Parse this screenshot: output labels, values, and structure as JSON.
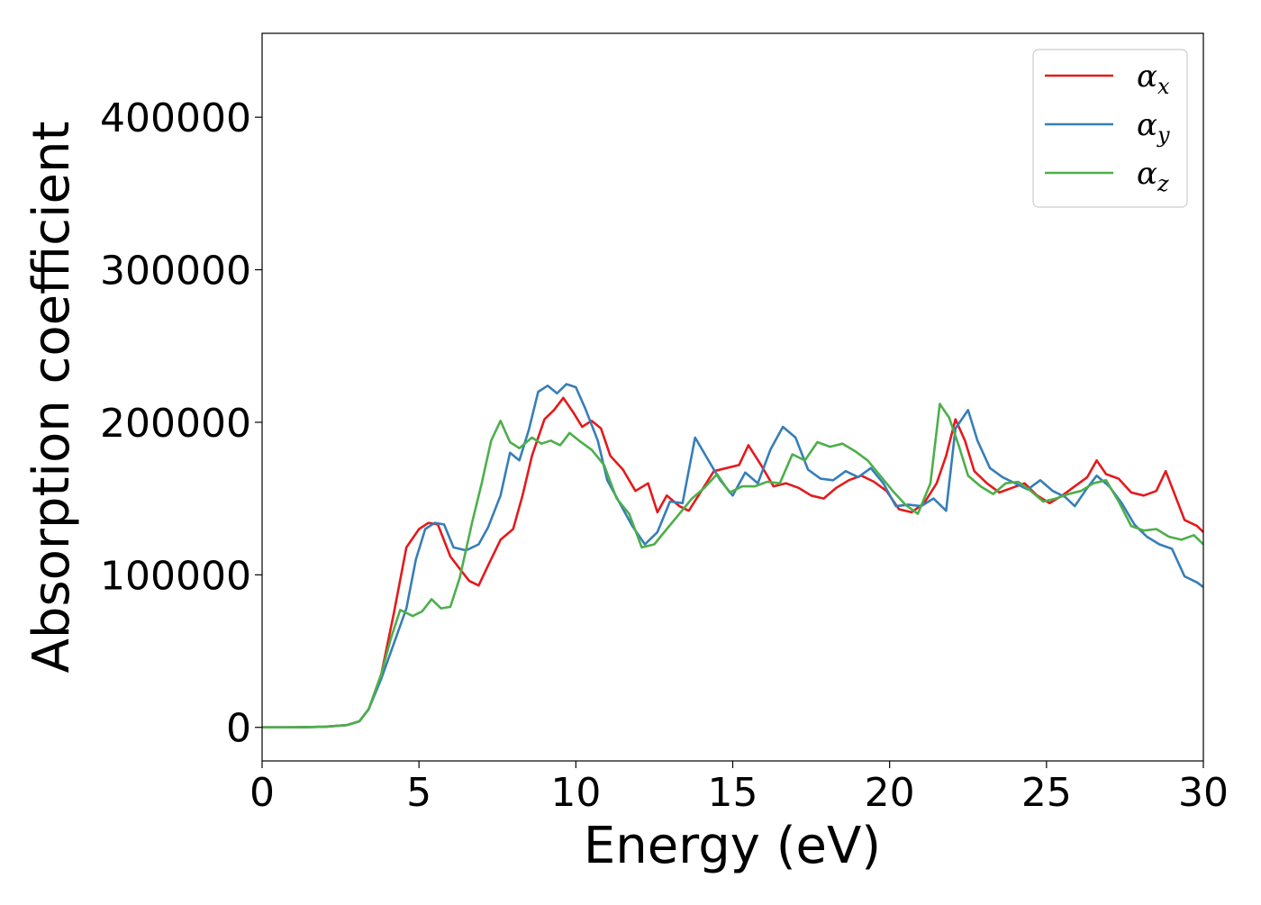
{
  "chart_data": {
    "type": "line",
    "xlabel": "Energy (eV)",
    "ylabel": "Absorption coefficient",
    "xlim": [
      0,
      30
    ],
    "ylim": [
      -22000,
      455000
    ],
    "xticks": [
      0,
      5,
      10,
      15,
      20,
      25,
      30
    ],
    "xtick_labels": [
      "0",
      "5",
      "10",
      "15",
      "20",
      "25",
      "30"
    ],
    "yticks": [
      0,
      100000,
      200000,
      300000,
      400000
    ],
    "ytick_labels": [
      "0",
      "100000",
      "200000",
      "300000",
      "400000"
    ],
    "grid": false,
    "legend_position": "top-right",
    "series": [
      {
        "name": "α_x",
        "legend_symbol": "α",
        "legend_subscript": "x",
        "color": "#e41a1c",
        "points": [
          [
            0,
            0
          ],
          [
            1,
            0
          ],
          [
            2,
            400
          ],
          [
            2.7,
            1500
          ],
          [
            3.1,
            4000
          ],
          [
            3.4,
            12000
          ],
          [
            3.8,
            35000
          ],
          [
            4.2,
            75000
          ],
          [
            4.6,
            118000
          ],
          [
            5.0,
            130000
          ],
          [
            5.3,
            134000
          ],
          [
            5.6,
            133000
          ],
          [
            6.0,
            112000
          ],
          [
            6.3,
            104000
          ],
          [
            6.6,
            96000
          ],
          [
            6.9,
            93000
          ],
          [
            7.2,
            106000
          ],
          [
            7.6,
            123000
          ],
          [
            8.0,
            130000
          ],
          [
            8.3,
            152000
          ],
          [
            8.6,
            178000
          ],
          [
            9.0,
            202000
          ],
          [
            9.3,
            208000
          ],
          [
            9.6,
            216000
          ],
          [
            9.9,
            207000
          ],
          [
            10.2,
            197000
          ],
          [
            10.5,
            201000
          ],
          [
            10.8,
            196000
          ],
          [
            11.1,
            178000
          ],
          [
            11.5,
            169000
          ],
          [
            11.9,
            155000
          ],
          [
            12.3,
            160000
          ],
          [
            12.6,
            141000
          ],
          [
            12.9,
            152000
          ],
          [
            13.3,
            145000
          ],
          [
            13.6,
            142000
          ],
          [
            14.0,
            155000
          ],
          [
            14.4,
            168000
          ],
          [
            14.8,
            170000
          ],
          [
            15.2,
            172000
          ],
          [
            15.5,
            185000
          ],
          [
            15.9,
            172000
          ],
          [
            16.3,
            158000
          ],
          [
            16.7,
            160000
          ],
          [
            17.1,
            157000
          ],
          [
            17.5,
            152000
          ],
          [
            17.9,
            150000
          ],
          [
            18.3,
            157000
          ],
          [
            18.7,
            162000
          ],
          [
            19.1,
            165000
          ],
          [
            19.5,
            161000
          ],
          [
            19.9,
            155000
          ],
          [
            20.3,
            143000
          ],
          [
            20.7,
            141000
          ],
          [
            21.1,
            147000
          ],
          [
            21.5,
            160000
          ],
          [
            21.8,
            178000
          ],
          [
            22.1,
            202000
          ],
          [
            22.4,
            188000
          ],
          [
            22.7,
            168000
          ],
          [
            23.1,
            160000
          ],
          [
            23.5,
            154000
          ],
          [
            23.9,
            157000
          ],
          [
            24.3,
            160000
          ],
          [
            24.7,
            152000
          ],
          [
            25.1,
            147000
          ],
          [
            25.5,
            152000
          ],
          [
            25.9,
            158000
          ],
          [
            26.3,
            164000
          ],
          [
            26.6,
            175000
          ],
          [
            26.9,
            166000
          ],
          [
            27.3,
            163000
          ],
          [
            27.7,
            154000
          ],
          [
            28.1,
            152000
          ],
          [
            28.5,
            155000
          ],
          [
            28.8,
            168000
          ],
          [
            29.1,
            152000
          ],
          [
            29.4,
            136000
          ],
          [
            29.8,
            132000
          ],
          [
            30,
            128000
          ]
        ]
      },
      {
        "name": "α_y",
        "legend_symbol": "α",
        "legend_subscript": "y",
        "color": "#377eb8",
        "points": [
          [
            0,
            0
          ],
          [
            1,
            0
          ],
          [
            2,
            400
          ],
          [
            2.7,
            1500
          ],
          [
            3.1,
            4000
          ],
          [
            3.4,
            12000
          ],
          [
            3.8,
            32000
          ],
          [
            4.2,
            55000
          ],
          [
            4.6,
            78000
          ],
          [
            4.9,
            110000
          ],
          [
            5.2,
            130000
          ],
          [
            5.5,
            134000
          ],
          [
            5.8,
            133000
          ],
          [
            6.1,
            118000
          ],
          [
            6.5,
            116000
          ],
          [
            6.9,
            120000
          ],
          [
            7.2,
            131000
          ],
          [
            7.6,
            152000
          ],
          [
            7.9,
            180000
          ],
          [
            8.2,
            175000
          ],
          [
            8.5,
            195000
          ],
          [
            8.8,
            220000
          ],
          [
            9.1,
            224000
          ],
          [
            9.4,
            219000
          ],
          [
            9.7,
            225000
          ],
          [
            10.0,
            223000
          ],
          [
            10.3,
            209000
          ],
          [
            10.7,
            188000
          ],
          [
            11.0,
            162000
          ],
          [
            11.4,
            147000
          ],
          [
            11.8,
            132000
          ],
          [
            12.2,
            120000
          ],
          [
            12.6,
            128000
          ],
          [
            13.0,
            148000
          ],
          [
            13.4,
            147000
          ],
          [
            13.8,
            190000
          ],
          [
            14.2,
            176000
          ],
          [
            14.6,
            162000
          ],
          [
            15.0,
            152000
          ],
          [
            15.4,
            167000
          ],
          [
            15.8,
            160000
          ],
          [
            16.2,
            182000
          ],
          [
            16.6,
            197000
          ],
          [
            17.0,
            190000
          ],
          [
            17.4,
            169000
          ],
          [
            17.8,
            163000
          ],
          [
            18.2,
            162000
          ],
          [
            18.6,
            168000
          ],
          [
            19.0,
            164000
          ],
          [
            19.4,
            170000
          ],
          [
            19.8,
            160000
          ],
          [
            20.2,
            145000
          ],
          [
            20.6,
            146000
          ],
          [
            21.0,
            145000
          ],
          [
            21.4,
            150000
          ],
          [
            21.8,
            142000
          ],
          [
            22.1,
            196000
          ],
          [
            22.5,
            208000
          ],
          [
            22.8,
            188000
          ],
          [
            23.2,
            170000
          ],
          [
            23.6,
            164000
          ],
          [
            24.0,
            160000
          ],
          [
            24.4,
            156000
          ],
          [
            24.8,
            162000
          ],
          [
            25.2,
            155000
          ],
          [
            25.6,
            151000
          ],
          [
            25.9,
            145000
          ],
          [
            26.3,
            157000
          ],
          [
            26.6,
            165000
          ],
          [
            27.0,
            158000
          ],
          [
            27.4,
            147000
          ],
          [
            27.8,
            133000
          ],
          [
            28.2,
            125000
          ],
          [
            28.6,
            120000
          ],
          [
            29.0,
            117000
          ],
          [
            29.4,
            99000
          ],
          [
            29.8,
            95000
          ],
          [
            30,
            92000
          ]
        ]
      },
      {
        "name": "α_z",
        "legend_symbol": "α",
        "legend_subscript": "z",
        "color": "#4daf4a",
        "points": [
          [
            0,
            0
          ],
          [
            1,
            0
          ],
          [
            2,
            400
          ],
          [
            2.7,
            1500
          ],
          [
            3.1,
            4000
          ],
          [
            3.4,
            12000
          ],
          [
            3.8,
            35000
          ],
          [
            4.1,
            58000
          ],
          [
            4.4,
            77000
          ],
          [
            4.8,
            73000
          ],
          [
            5.1,
            76000
          ],
          [
            5.4,
            84000
          ],
          [
            5.7,
            78000
          ],
          [
            6.0,
            79000
          ],
          [
            6.3,
            98000
          ],
          [
            6.7,
            135000
          ],
          [
            7.0,
            160000
          ],
          [
            7.3,
            188000
          ],
          [
            7.6,
            201000
          ],
          [
            7.9,
            187000
          ],
          [
            8.2,
            183000
          ],
          [
            8.6,
            190000
          ],
          [
            8.9,
            186000
          ],
          [
            9.2,
            188000
          ],
          [
            9.5,
            185000
          ],
          [
            9.8,
            193000
          ],
          [
            10.1,
            188000
          ],
          [
            10.5,
            182000
          ],
          [
            10.9,
            172000
          ],
          [
            11.3,
            150000
          ],
          [
            11.7,
            140000
          ],
          [
            12.1,
            118000
          ],
          [
            12.5,
            120000
          ],
          [
            12.9,
            130000
          ],
          [
            13.3,
            140000
          ],
          [
            13.7,
            150000
          ],
          [
            14.1,
            157000
          ],
          [
            14.5,
            166000
          ],
          [
            14.9,
            154000
          ],
          [
            15.3,
            158000
          ],
          [
            15.7,
            158000
          ],
          [
            16.1,
            161000
          ],
          [
            16.5,
            160000
          ],
          [
            16.9,
            179000
          ],
          [
            17.3,
            175000
          ],
          [
            17.7,
            187000
          ],
          [
            18.1,
            184000
          ],
          [
            18.5,
            186000
          ],
          [
            18.9,
            181000
          ],
          [
            19.3,
            175000
          ],
          [
            19.7,
            165000
          ],
          [
            20.1,
            155000
          ],
          [
            20.5,
            146000
          ],
          [
            20.9,
            140000
          ],
          [
            21.3,
            160000
          ],
          [
            21.6,
            212000
          ],
          [
            21.9,
            203000
          ],
          [
            22.2,
            185000
          ],
          [
            22.5,
            165000
          ],
          [
            22.9,
            158000
          ],
          [
            23.3,
            153000
          ],
          [
            23.7,
            160000
          ],
          [
            24.1,
            161000
          ],
          [
            24.5,
            155000
          ],
          [
            24.9,
            148000
          ],
          [
            25.3,
            150000
          ],
          [
            25.7,
            153000
          ],
          [
            26.1,
            155000
          ],
          [
            26.5,
            160000
          ],
          [
            26.9,
            162000
          ],
          [
            27.3,
            148000
          ],
          [
            27.7,
            132000
          ],
          [
            28.1,
            129000
          ],
          [
            28.5,
            130000
          ],
          [
            28.9,
            125000
          ],
          [
            29.3,
            123000
          ],
          [
            29.7,
            126000
          ],
          [
            30,
            120000
          ]
        ]
      }
    ]
  }
}
